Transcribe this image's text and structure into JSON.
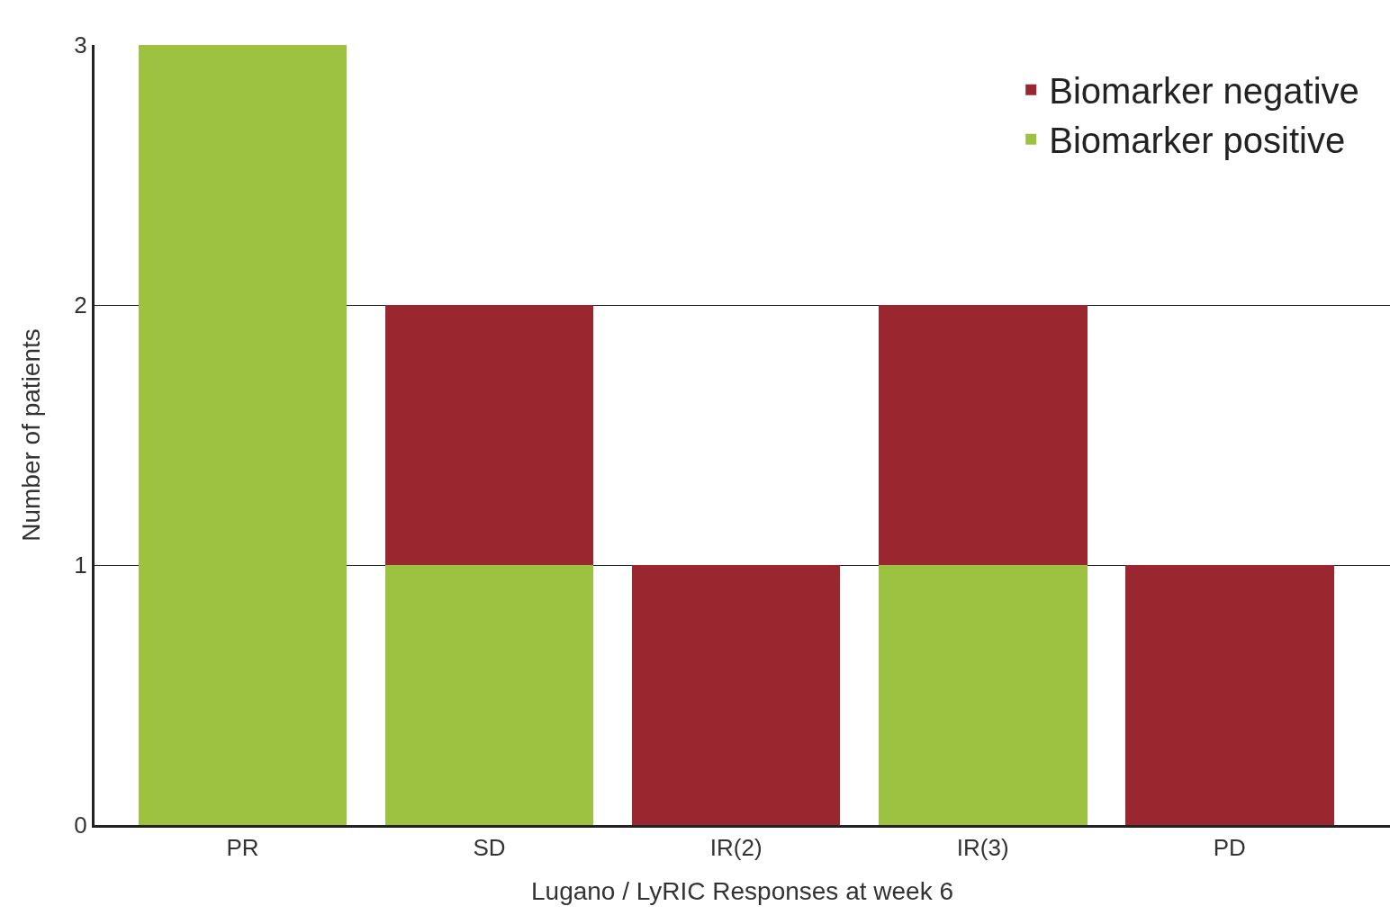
{
  "chart_data": {
    "type": "bar",
    "stacked": true,
    "xlabel": "Lugano / LyRIC Responses at week 6",
    "ylabel": "Number of patients",
    "categories": [
      "PR",
      "SD",
      "IR(2)",
      "IR(3)",
      "PD"
    ],
    "series": [
      {
        "name": "Biomarker positive",
        "color": "#9dc241",
        "values": [
          3,
          1,
          0,
          1,
          0
        ]
      },
      {
        "name": "Biomarker negative",
        "color": "#9a2730",
        "values": [
          0,
          1,
          1,
          1,
          1
        ]
      }
    ],
    "ylim": [
      0,
      3
    ],
    "yticks": [
      0,
      1,
      2,
      3
    ],
    "grid": "y",
    "legend": "top right"
  }
}
